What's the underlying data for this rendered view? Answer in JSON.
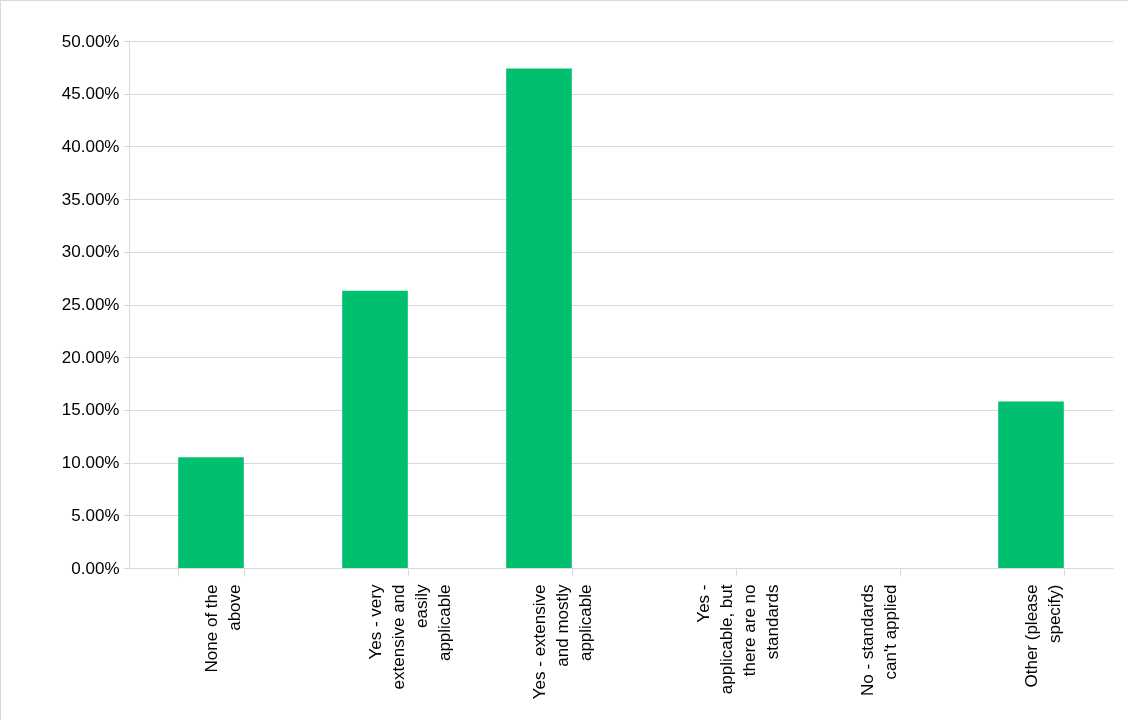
{
  "chart_data": {
    "type": "bar",
    "categories": [
      "None of the above",
      "Yes - very extensive and easily applicable",
      "Yes - extensive and mostly applicable",
      "Yes - applicable, but there are no standards",
      "No - standards can't applied",
      "Other (please specify)"
    ],
    "values": [
      10.5,
      26.3,
      47.4,
      0,
      0,
      15.8
    ],
    "color": "#00bf6f",
    "ylim": [
      0,
      50
    ],
    "yticks": [
      {
        "value": 0,
        "label": "0.00%"
      },
      {
        "value": 5,
        "label": "5.00%"
      },
      {
        "value": 10,
        "label": "10.00%"
      },
      {
        "value": 15,
        "label": "15.00%"
      },
      {
        "value": 20,
        "label": "20.00%"
      },
      {
        "value": 25,
        "label": "25.00%"
      },
      {
        "value": 30,
        "label": "30.00%"
      },
      {
        "value": 35,
        "label": "35.00%"
      },
      {
        "value": 40,
        "label": "40.00%"
      },
      {
        "value": 45,
        "label": "45.00%"
      },
      {
        "value": 50,
        "label": "50.00%"
      }
    ],
    "grid": "y"
  }
}
